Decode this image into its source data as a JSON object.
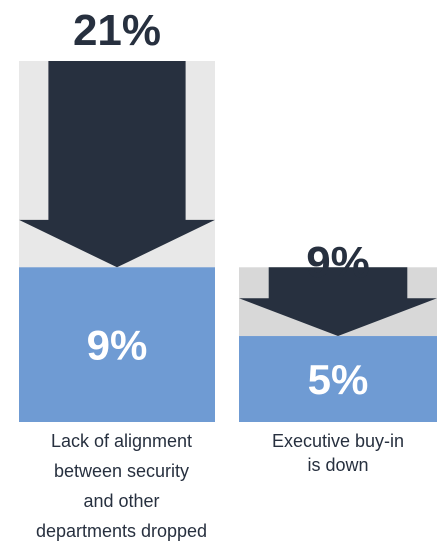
{
  "chart_data": {
    "type": "bar",
    "categories": [
      "Lack of alignment between security and other departments dropped",
      "Executive buy-in is down"
    ],
    "series": [
      {
        "values": [
          21,
          9
        ]
      },
      {
        "values": [
          9,
          5
        ]
      }
    ],
    "bars": [
      {
        "before_label": "21%",
        "after_label": "9%",
        "caption_lines": [
          "Lack of alignment",
          "between security",
          "and other",
          "departments dropped"
        ]
      },
      {
        "before_label": "9%",
        "after_label": "5%",
        "caption_lines": [
          "Executive buy-in",
          "is down"
        ]
      }
    ],
    "ylim": [
      0,
      21
    ],
    "colors": {
      "before_bar": "#e8e8e8",
      "before_bar_small": "#d8d8d8",
      "after_bar": "#6f9bd3",
      "arrow": "#27303f"
    }
  }
}
